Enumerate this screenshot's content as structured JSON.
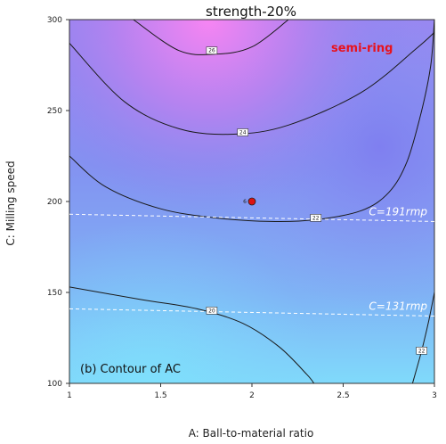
{
  "chart_data": {
    "type": "contour",
    "title": "strength-20%",
    "xlabel": "A: Ball-to-material ratio",
    "ylabel": "C: Milling speed",
    "xlim": [
      1,
      3
    ],
    "ylim": [
      100,
      300
    ],
    "xticks": [
      "1",
      "1.5",
      "2",
      "2.5",
      "3"
    ],
    "yticks": [
      "100",
      "150",
      "200",
      "250",
      "300"
    ],
    "contour_levels": [
      {
        "level": "26",
        "points": [
          [
            1.35,
            300
          ],
          [
            1.6,
            283
          ],
          [
            1.8,
            281
          ],
          [
            2.0,
            285
          ],
          [
            2.2,
            300
          ]
        ],
        "label_at": [
          1.78,
          283
        ]
      },
      {
        "level": "24",
        "points": [
          [
            1.0,
            287
          ],
          [
            1.3,
            255
          ],
          [
            1.6,
            240
          ],
          [
            1.9,
            237
          ],
          [
            2.2,
            242
          ],
          [
            2.6,
            260
          ],
          [
            2.9,
            284
          ],
          [
            3.0,
            293
          ]
        ],
        "label_at": [
          1.95,
          238
        ]
      },
      {
        "level": "22",
        "points": [
          [
            1.0,
            225
          ],
          [
            1.2,
            208
          ],
          [
            1.5,
            196
          ],
          [
            1.8,
            191
          ],
          [
            2.1,
            189
          ],
          [
            2.35,
            190
          ],
          [
            2.6,
            195
          ],
          [
            2.75,
            205
          ],
          [
            2.85,
            222
          ],
          [
            2.93,
            250
          ],
          [
            2.98,
            275
          ],
          [
            3.0,
            300
          ]
        ],
        "label_at": [
          2.35,
          191
        ]
      },
      {
        "level": "20",
        "points": [
          [
            1.0,
            153
          ],
          [
            1.4,
            146
          ],
          [
            1.7,
            141
          ],
          [
            1.95,
            133
          ],
          [
            2.15,
            120
          ],
          [
            2.3,
            105
          ],
          [
            2.34,
            100
          ]
        ],
        "label_at": [
          1.78,
          140
        ]
      },
      {
        "level": "22",
        "points": [
          [
            2.88,
            100
          ],
          [
            2.93,
            118
          ],
          [
            2.97,
            135
          ],
          [
            3.0,
            150
          ]
        ],
        "label_at": [
          2.93,
          118
        ]
      }
    ],
    "design_point": {
      "x": 2.0,
      "y": 200,
      "label": "6"
    },
    "reference_lines": [
      {
        "label": "C=191rmp",
        "points": [
          [
            1.0,
            193
          ],
          [
            3.0,
            189
          ]
        ]
      },
      {
        "label": "C=131rmp",
        "points": [
          [
            1.0,
            141
          ],
          [
            3.0,
            137
          ]
        ]
      }
    ],
    "annotations": {
      "semi_ring": "semi-ring",
      "panel": "(b) Contour of AC"
    },
    "colors": {
      "high": "#f383f4",
      "mid": "#7f84f0",
      "low": "#7fd8fb",
      "semi_ring": "#e8121c",
      "point": "#dd1111"
    }
  }
}
